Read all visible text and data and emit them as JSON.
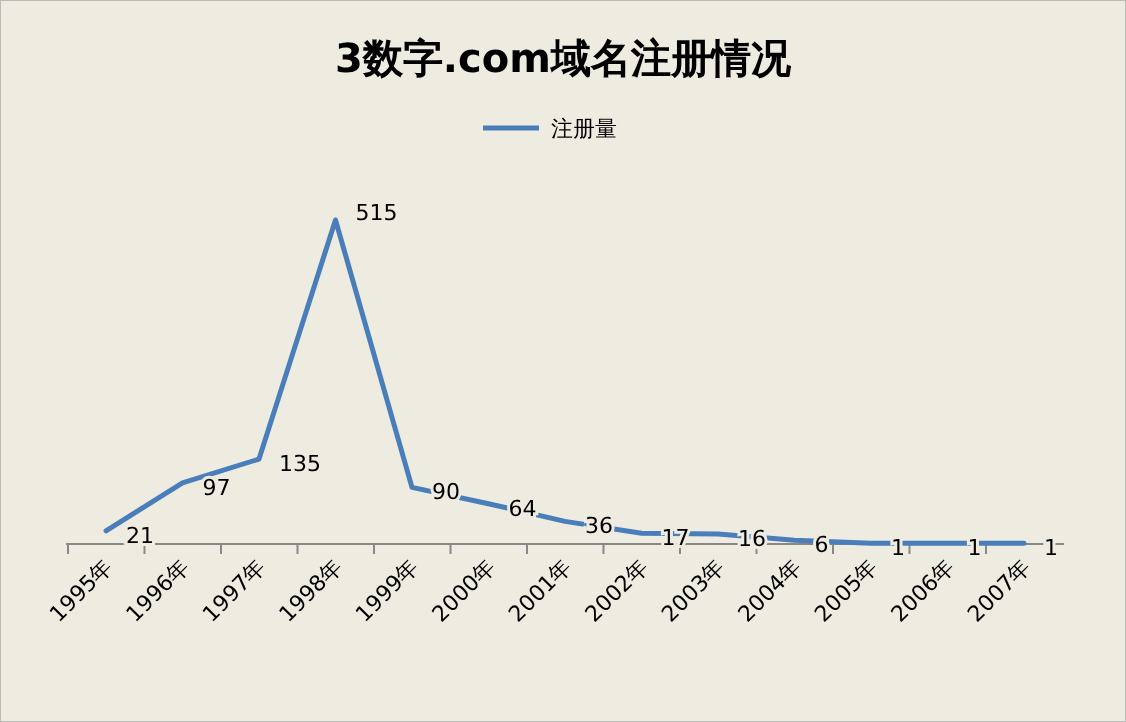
{
  "chart_data": {
    "type": "line",
    "title": "3数字.com域名注册情况",
    "categories": [
      "1995年",
      "1996年",
      "1997年",
      "1998年",
      "1999年",
      "2000年",
      "2001年",
      "2002年",
      "2003年",
      "2004年",
      "2005年",
      "2006年",
      "2007年"
    ],
    "series": [
      {
        "name": "注册量",
        "color": "#4a7ebb",
        "values": [
          21,
          97,
          135,
          515,
          90,
          64,
          36,
          17,
          16,
          6,
          1,
          1,
          1
        ]
      }
    ],
    "data_labels": true,
    "legend": "top",
    "grid": false,
    "marker": "none",
    "line_style": "solid",
    "tick_labels": "x"
  }
}
